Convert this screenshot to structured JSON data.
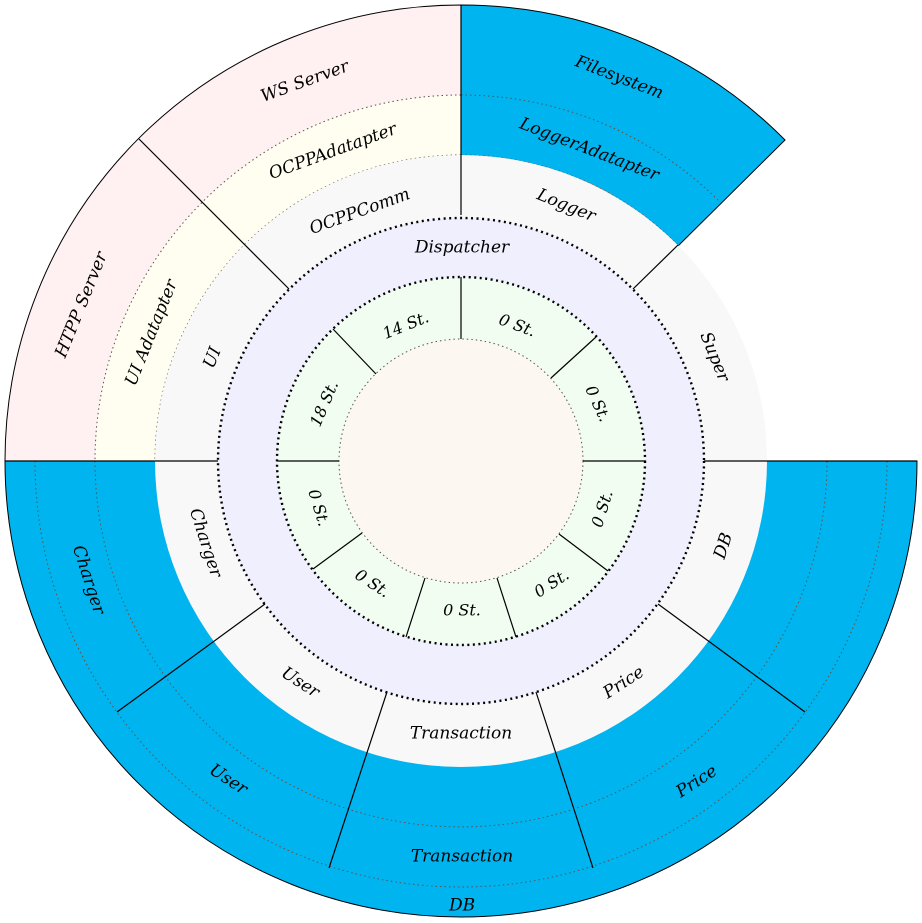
{
  "colors": {
    "cyan": "#00b4ef",
    "pink": "#fff0f1",
    "cream": "#fffef1",
    "gray": "#f8f8f8",
    "lavender": "#efeffe",
    "mint": "#f1fdf1",
    "center": "#fcf8f1",
    "line": "#000000"
  },
  "outer_labels": {
    "ws_server": "WS Server",
    "http_server": "HTPP Server",
    "filesystem": "Filesystem",
    "charger": "Charger",
    "user": "User",
    "transaction": "Transaction",
    "price": "Price",
    "db_bottom": "DB"
  },
  "middle_labels": {
    "ocpp_adatapter": "OCPPAdatapter",
    "ui_adatapter": "UI Adatapter",
    "logger_adatapter": "LoggerAdatapter"
  },
  "module_labels": {
    "ocpp_comm": "OCPPComm",
    "ui": "UI",
    "logger": "Logger",
    "super": "Super",
    "db": "DB",
    "price": "Price",
    "transaction": "Transaction",
    "user": "User",
    "charger": "Charger"
  },
  "dispatcher_label": "Dispatcher",
  "station_labels": [
    "0 St.",
    "0 St.",
    "0 St.",
    "0 St.",
    "0 St.",
    "0 St.",
    "0 St.",
    "18 St.",
    "14 St."
  ]
}
